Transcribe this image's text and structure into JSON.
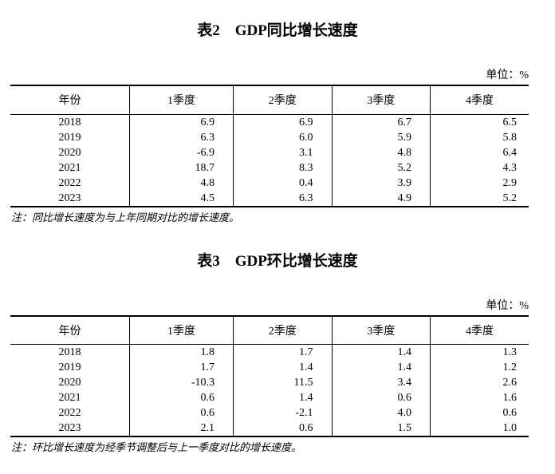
{
  "document": {
    "tables": [
      {
        "title": "表2　GDP同比增长速度",
        "unit_label": "单位：%",
        "headers": [
          "年份",
          "1季度",
          "2季度",
          "3季度",
          "4季度"
        ],
        "rows": [
          [
            "2018",
            "6.9",
            "6.9",
            "6.7",
            "6.5"
          ],
          [
            "2019",
            "6.3",
            "6.0",
            "5.9",
            "5.8"
          ],
          [
            "2020",
            "-6.9",
            "3.1",
            "4.8",
            "6.4"
          ],
          [
            "2021",
            "18.7",
            "8.3",
            "5.2",
            "4.3"
          ],
          [
            "2022",
            "4.8",
            "0.4",
            "3.9",
            "2.9"
          ],
          [
            "2023",
            "4.5",
            "6.3",
            "4.9",
            "5.2"
          ]
        ],
        "note": "注：同比增长速度为与上年同期对比的增长速度。"
      },
      {
        "title": "表3　GDP环比增长速度",
        "unit_label": "单位：%",
        "headers": [
          "年份",
          "1季度",
          "2季度",
          "3季度",
          "4季度"
        ],
        "rows": [
          [
            "2018",
            "1.8",
            "1.7",
            "1.4",
            "1.3"
          ],
          [
            "2019",
            "1.7",
            "1.4",
            "1.4",
            "1.2"
          ],
          [
            "2020",
            "-10.3",
            "11.5",
            "3.4",
            "2.6"
          ],
          [
            "2021",
            "0.6",
            "1.4",
            "0.6",
            "1.6"
          ],
          [
            "2022",
            "0.6",
            "-2.1",
            "4.0",
            "0.6"
          ],
          [
            "2023",
            "2.1",
            "0.6",
            "1.5",
            "1.0"
          ]
        ],
        "note": "注：环比增长速度为经季节调整后与上一季度对比的增长速度。"
      }
    ],
    "colors": {
      "border": "#000000",
      "text": "#000000",
      "background": "#ffffff"
    }
  }
}
